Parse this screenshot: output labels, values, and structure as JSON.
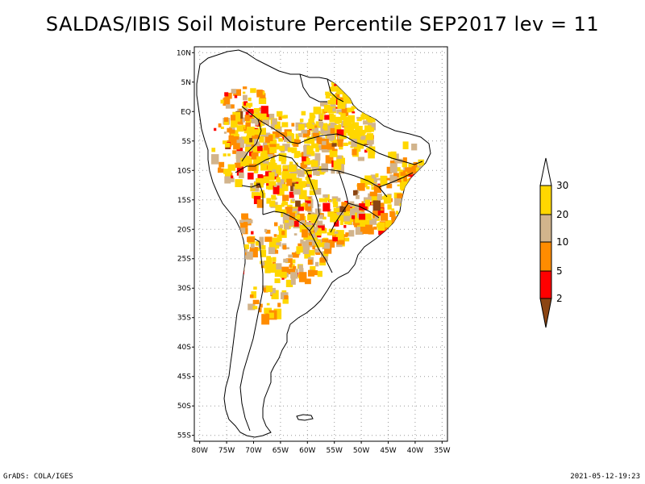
{
  "title": "SALDAS/IBIS Soil Moisture Percentile SEP2017 lev = 11",
  "footer": {
    "left": "GrADS: COLA/IGES",
    "right": "2021-05-12-19:23"
  },
  "map": {
    "lat_labels": [
      "10N",
      "5N",
      "EQ",
      "5S",
      "10S",
      "15S",
      "20S",
      "25S",
      "30S",
      "35S",
      "40S",
      "45S",
      "50S",
      "55S"
    ],
    "lon_labels": [
      "80W",
      "75W",
      "70W",
      "65W",
      "60W",
      "55W",
      "50W",
      "45W",
      "40W",
      "35W"
    ],
    "lat_values": [
      10,
      5,
      0,
      -5,
      -10,
      -15,
      -20,
      -25,
      -30,
      -35,
      -40,
      -45,
      -50,
      -55
    ],
    "lon_values": [
      -80,
      -75,
      -70,
      -65,
      -60,
      -55,
      -50,
      -45,
      -40,
      -35
    ],
    "extent": {
      "lon_min": -81,
      "lon_max": -34,
      "lat_min": -56,
      "lat_max": 11
    },
    "grid": "dotted"
  },
  "colorbar": {
    "levels": [
      "2",
      "5",
      "10",
      "20",
      "30"
    ],
    "colors": {
      "below_2": "#8B4513",
      "2_5": "#FF0000",
      "5_10": "#FF8C00",
      "10_20": "#D2B48C",
      "20_30": "#FFD700",
      "above_30": "#FFFFFF"
    }
  }
}
